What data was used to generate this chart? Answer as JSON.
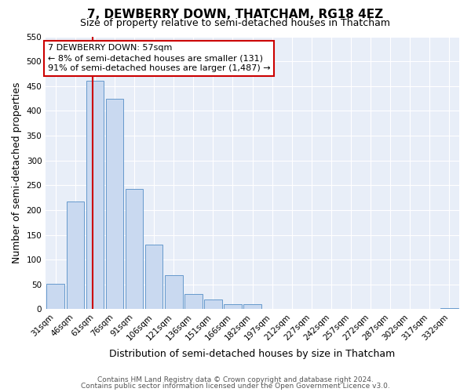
{
  "title": "7, DEWBERRY DOWN, THATCHAM, RG18 4EZ",
  "subtitle": "Size of property relative to semi-detached houses in Thatcham",
  "xlabel": "Distribution of semi-detached houses by size in Thatcham",
  "ylabel": "Number of semi-detached properties",
  "bin_labels": [
    "31sqm",
    "46sqm",
    "61sqm",
    "76sqm",
    "91sqm",
    "106sqm",
    "121sqm",
    "136sqm",
    "151sqm",
    "166sqm",
    "182sqm",
    "197sqm",
    "212sqm",
    "227sqm",
    "242sqm",
    "257sqm",
    "272sqm",
    "287sqm",
    "302sqm",
    "317sqm",
    "332sqm"
  ],
  "bar_values": [
    52,
    218,
    460,
    425,
    243,
    130,
    68,
    30,
    20,
    10,
    10,
    0,
    0,
    0,
    0,
    0,
    0,
    0,
    0,
    0,
    3
  ],
  "bar_color": "#c9d9f0",
  "bar_edge_color": "#6699cc",
  "vline_color": "#cc0000",
  "vline_x": 1.87,
  "annotation_title": "7 DEWBERRY DOWN: 57sqm",
  "annotation_line1": "← 8% of semi-detached houses are smaller (131)",
  "annotation_line2": "91% of semi-detached houses are larger (1,487) →",
  "annotation_box_color": "white",
  "annotation_box_edge_color": "#cc0000",
  "ylim": [
    0,
    550
  ],
  "yticks": [
    0,
    50,
    100,
    150,
    200,
    250,
    300,
    350,
    400,
    450,
    500,
    550
  ],
  "footer1": "Contains HM Land Registry data © Crown copyright and database right 2024.",
  "footer2": "Contains public sector information licensed under the Open Government Licence v3.0.",
  "background_color": "#e8eef8",
  "grid_color": "#ffffff",
  "title_fontsize": 11,
  "subtitle_fontsize": 9,
  "axis_label_fontsize": 9,
  "tick_fontsize": 7.5
}
